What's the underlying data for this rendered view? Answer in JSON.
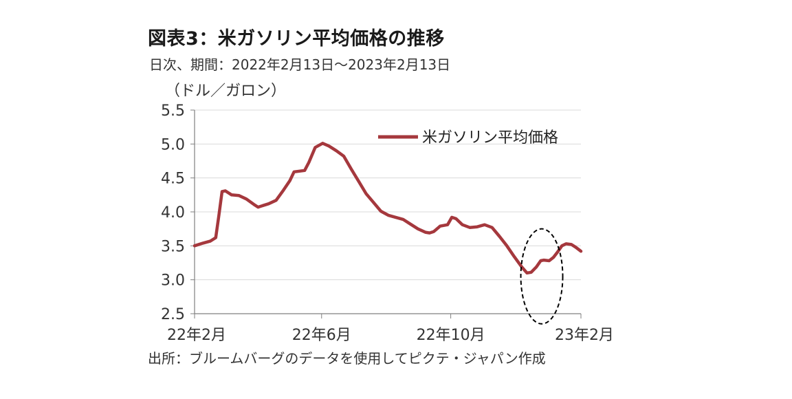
{
  "header": {
    "title": "図表3：米ガソリン平均価格の推移",
    "subtitle": "日次、期間：2022年2月13日～2023年2月13日",
    "unit": "（ドル／ガロン）"
  },
  "footer": {
    "source": "出所：ブルームバーグのデータを使用してピクテ・ジャパン作成"
  },
  "chart_data": {
    "type": "line",
    "title": "米ガソリン平均価格の推移",
    "ylabel": "（ドル／ガロン）",
    "xlabel": "",
    "ylim": [
      2.5,
      5.5
    ],
    "yticks": [
      "5.5",
      "5.0",
      "4.5",
      "4.0",
      "3.5",
      "3.0",
      "2.5"
    ],
    "xticks": [
      "22年2月",
      "22年6月",
      "22年10月",
      "23年2月"
    ],
    "grid": true,
    "legend": "top-right",
    "colors": {
      "series": "#a5383d",
      "grid": "#d9d9d9",
      "axis": "#7f7f7f",
      "ellipse": "#000000"
    },
    "series": [
      {
        "name": "米ガソリン平均価格",
        "x": [
          "2022-02-13",
          "2022-02-21",
          "2022-02-28",
          "2022-03-05",
          "2022-03-08",
          "2022-03-11",
          "2022-03-14",
          "2022-03-20",
          "2022-03-27",
          "2022-04-03",
          "2022-04-10",
          "2022-04-14",
          "2022-04-18",
          "2022-04-24",
          "2022-05-01",
          "2022-05-08",
          "2022-05-14",
          "2022-05-18",
          "2022-05-23",
          "2022-05-28",
          "2022-06-01",
          "2022-06-07",
          "2022-06-14",
          "2022-06-20",
          "2022-06-27",
          "2022-07-04",
          "2022-07-11",
          "2022-07-18",
          "2022-07-25",
          "2022-08-01",
          "2022-08-08",
          "2022-08-15",
          "2022-08-22",
          "2022-08-29",
          "2022-09-05",
          "2022-09-12",
          "2022-09-19",
          "2022-09-23",
          "2022-09-27",
          "2022-10-03",
          "2022-10-10",
          "2022-10-14",
          "2022-10-18",
          "2022-10-24",
          "2022-10-31",
          "2022-11-07",
          "2022-11-14",
          "2022-11-21",
          "2022-11-28",
          "2022-12-05",
          "2022-12-12",
          "2022-12-19",
          "2022-12-24",
          "2022-12-28",
          "2023-01-02",
          "2023-01-06",
          "2023-01-09",
          "2023-01-14",
          "2023-01-18",
          "2023-01-22",
          "2023-01-26",
          "2023-01-30",
          "2023-02-04",
          "2023-02-08",
          "2023-02-13"
        ],
        "values": [
          3.5,
          3.54,
          3.57,
          3.62,
          3.95,
          4.3,
          4.31,
          4.25,
          4.24,
          4.19,
          4.11,
          4.07,
          4.09,
          4.12,
          4.17,
          4.32,
          4.46,
          4.59,
          4.6,
          4.61,
          4.73,
          4.95,
          5.01,
          4.97,
          4.9,
          4.82,
          4.63,
          4.45,
          4.27,
          4.14,
          4.01,
          3.95,
          3.92,
          3.89,
          3.82,
          3.75,
          3.7,
          3.69,
          3.71,
          3.79,
          3.81,
          3.92,
          3.9,
          3.81,
          3.77,
          3.78,
          3.81,
          3.77,
          3.64,
          3.5,
          3.34,
          3.19,
          3.1,
          3.11,
          3.19,
          3.28,
          3.29,
          3.28,
          3.33,
          3.41,
          3.5,
          3.53,
          3.52,
          3.48,
          3.42
        ]
      }
    ],
    "annotations": [
      {
        "type": "dashed-ellipse",
        "x_center": "2023-01-07",
        "y_center": 3.05,
        "x_halfwidth_days": 6,
        "y_halfwidth": 0.7
      }
    ]
  }
}
